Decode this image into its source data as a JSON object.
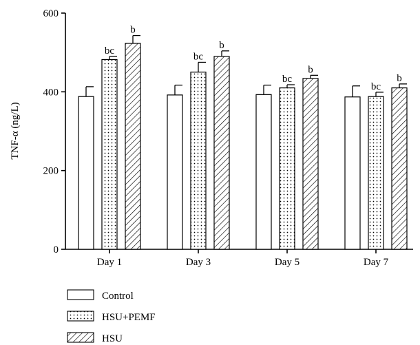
{
  "chart_data": {
    "type": "bar",
    "ylabel": "TNF-α (ng/L)",
    "ylim": [
      0,
      600
    ],
    "yticks": [
      "0",
      "200",
      "400",
      "600"
    ],
    "categories": [
      "Day 1",
      "Day 3",
      "Day 5",
      "Day 7"
    ],
    "series": [
      {
        "name": "Control",
        "pattern": "empty",
        "values": [
          388,
          392,
          393,
          387
        ],
        "errors": [
          25,
          25,
          24,
          28
        ],
        "annotations": [
          "",
          "",
          "",
          ""
        ]
      },
      {
        "name": "HSU+PEMF",
        "pattern": "dotted",
        "values": [
          482,
          450,
          410,
          388
        ],
        "errors": [
          8,
          25,
          8,
          11
        ],
        "annotations": [
          "bc",
          "bc",
          "bc",
          "bc"
        ]
      },
      {
        "name": "HSU",
        "pattern": "hatched",
        "values": [
          523,
          490,
          434,
          410
        ],
        "errors": [
          20,
          14,
          8,
          10
        ],
        "annotations": [
          "b",
          "b",
          "b",
          "b"
        ]
      }
    ],
    "legend_position": "bottom-left",
    "grid": false
  }
}
